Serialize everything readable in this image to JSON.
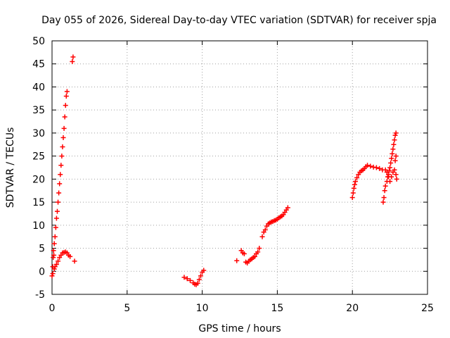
{
  "chart_data": {
    "type": "scatter",
    "title": "Day 055 of 2026, Sidereal Day-to-day VTEC variation (SDTVAR) for receiver spja",
    "xlabel": "GPS time / hours",
    "ylabel": "SDTVAR / TECUs",
    "xlim": [
      0,
      25
    ],
    "ylim": [
      -5,
      50
    ],
    "x_ticks": [
      0,
      5,
      10,
      15,
      20,
      25
    ],
    "y_ticks": [
      -5,
      0,
      5,
      10,
      15,
      20,
      25,
      30,
      35,
      40,
      45,
      50
    ],
    "grid": true,
    "legend": "none",
    "marker": "+",
    "color": "#ff0000",
    "series": [
      {
        "values": [
          [
            0.0,
            -1.0
          ],
          [
            0.05,
            -0.5
          ],
          [
            0.05,
            1.0
          ],
          [
            0.08,
            3.0
          ],
          [
            0.1,
            4.5
          ],
          [
            0.12,
            3.5
          ],
          [
            0.15,
            6.0
          ],
          [
            0.2,
            7.5
          ],
          [
            0.25,
            9.5
          ],
          [
            0.3,
            11.5
          ],
          [
            0.35,
            13.0
          ],
          [
            0.4,
            15.0
          ],
          [
            0.45,
            17.0
          ],
          [
            0.5,
            19.0
          ],
          [
            0.55,
            21.0
          ],
          [
            0.6,
            23.0
          ],
          [
            0.65,
            25.0
          ],
          [
            0.7,
            27.0
          ],
          [
            0.75,
            29.0
          ],
          [
            0.8,
            31.0
          ],
          [
            0.85,
            33.5
          ],
          [
            0.9,
            36.0
          ],
          [
            0.95,
            38.0
          ],
          [
            1.0,
            39.0
          ],
          [
            1.35,
            45.5
          ],
          [
            1.4,
            46.5
          ],
          [
            0.15,
            0.5
          ],
          [
            0.2,
            1.0
          ],
          [
            0.3,
            1.5
          ],
          [
            0.4,
            2.2
          ],
          [
            0.5,
            3.0
          ],
          [
            0.6,
            3.5
          ],
          [
            0.7,
            4.0
          ],
          [
            0.8,
            4.1
          ],
          [
            0.9,
            4.2
          ],
          [
            1.0,
            4.0
          ],
          [
            1.1,
            3.5
          ],
          [
            1.2,
            3.2
          ],
          [
            1.5,
            2.2
          ],
          [
            8.8,
            -1.3
          ],
          [
            9.0,
            -1.6
          ],
          [
            9.2,
            -2.0
          ],
          [
            9.4,
            -2.5
          ],
          [
            9.5,
            -2.8
          ],
          [
            9.6,
            -2.9
          ],
          [
            9.7,
            -2.6
          ],
          [
            9.8,
            -1.8
          ],
          [
            9.9,
            -1.0
          ],
          [
            10.0,
            -0.2
          ],
          [
            10.1,
            0.2
          ],
          [
            12.3,
            2.3
          ],
          [
            12.6,
            4.5
          ],
          [
            12.7,
            4.0
          ],
          [
            12.8,
            3.8
          ],
          [
            12.9,
            2.0
          ],
          [
            13.0,
            1.8
          ],
          [
            13.1,
            2.2
          ],
          [
            13.2,
            2.5
          ],
          [
            13.3,
            2.7
          ],
          [
            13.4,
            3.0
          ],
          [
            13.5,
            3.2
          ],
          [
            13.6,
            3.8
          ],
          [
            13.7,
            4.2
          ],
          [
            13.8,
            5.0
          ],
          [
            14.0,
            7.5
          ],
          [
            14.1,
            8.5
          ],
          [
            14.2,
            9.0
          ],
          [
            14.3,
            9.8
          ],
          [
            14.4,
            10.3
          ],
          [
            14.5,
            10.5
          ],
          [
            14.6,
            10.7
          ],
          [
            14.7,
            10.8
          ],
          [
            14.8,
            11.0
          ],
          [
            14.9,
            11.1
          ],
          [
            15.0,
            11.3
          ],
          [
            15.1,
            11.6
          ],
          [
            15.2,
            11.8
          ],
          [
            15.3,
            12.0
          ],
          [
            15.4,
            12.3
          ],
          [
            15.5,
            12.8
          ],
          [
            15.6,
            13.3
          ],
          [
            15.7,
            13.8
          ],
          [
            20.0,
            16.0
          ],
          [
            20.05,
            17.0
          ],
          [
            20.1,
            18.0
          ],
          [
            20.15,
            18.8
          ],
          [
            20.2,
            19.5
          ],
          [
            20.3,
            20.3
          ],
          [
            20.4,
            21.0
          ],
          [
            20.5,
            21.5
          ],
          [
            20.6,
            21.8
          ],
          [
            20.7,
            22.0
          ],
          [
            20.8,
            22.3
          ],
          [
            20.9,
            22.7
          ],
          [
            21.0,
            23.0
          ],
          [
            21.2,
            22.8
          ],
          [
            21.4,
            22.6
          ],
          [
            21.6,
            22.5
          ],
          [
            21.8,
            22.3
          ],
          [
            22.0,
            22.0
          ],
          [
            22.05,
            15.0
          ],
          [
            22.1,
            16.0
          ],
          [
            22.15,
            17.5
          ],
          [
            22.2,
            18.5
          ],
          [
            22.3,
            19.5
          ],
          [
            22.35,
            20.5
          ],
          [
            22.4,
            21.0
          ],
          [
            22.45,
            21.8
          ],
          [
            22.5,
            22.5
          ],
          [
            22.55,
            23.5
          ],
          [
            22.6,
            24.5
          ],
          [
            22.65,
            25.5
          ],
          [
            22.7,
            26.5
          ],
          [
            22.75,
            27.5
          ],
          [
            22.8,
            28.5
          ],
          [
            22.85,
            29.5
          ],
          [
            22.9,
            30.0
          ],
          [
            22.2,
            22.0
          ],
          [
            22.3,
            21.5
          ],
          [
            22.4,
            20.5
          ],
          [
            22.5,
            19.5
          ],
          [
            22.6,
            20.5
          ],
          [
            22.7,
            21.5
          ],
          [
            22.8,
            22.0
          ],
          [
            22.9,
            21.0
          ],
          [
            22.95,
            20.0
          ],
          [
            22.85,
            24.0
          ],
          [
            22.9,
            25.0
          ]
        ]
      }
    ]
  }
}
